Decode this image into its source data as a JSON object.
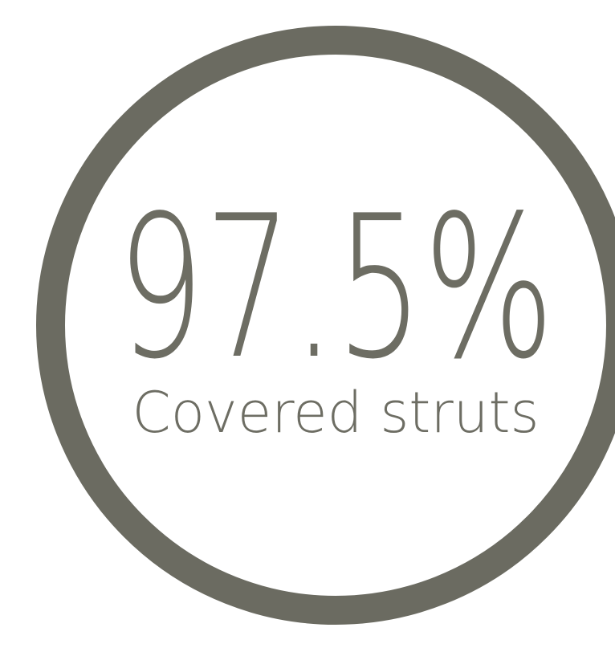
{
  "stat": {
    "value": "97.5%",
    "label": "Covered struts"
  }
}
